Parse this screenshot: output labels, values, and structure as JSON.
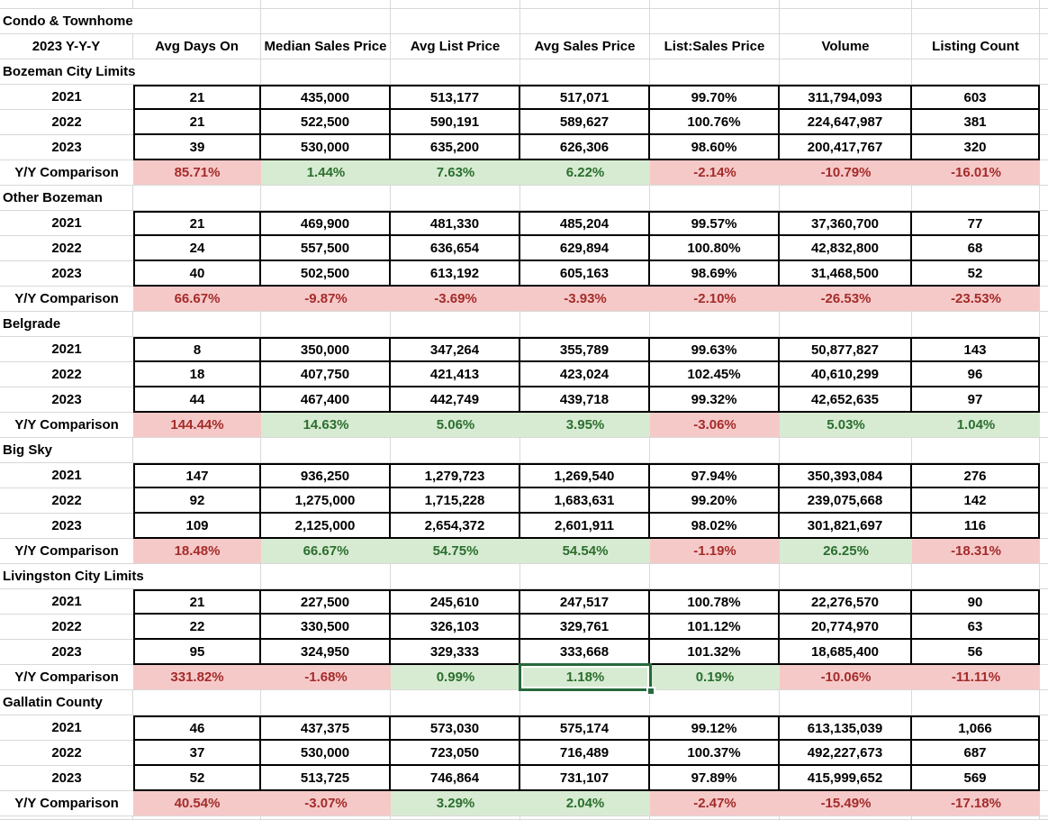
{
  "title": "Condo & Townhome",
  "columns": [
    "2023 Y-Y-Y",
    "Avg Days On",
    "Median Sales Price",
    "Avg List Price",
    "Avg Sales Price",
    "List:Sales Price",
    "Volume",
    "Listing Count"
  ],
  "yy_label": "Y/Y Comparison",
  "colors": {
    "positive_fill": "#D7EBD2",
    "positive_text": "#2B6E2F",
    "negative_fill": "#F6C9C9",
    "negative_text": "#A32C2A",
    "selection_border": "#26693C",
    "gridline": "#D8D8D8",
    "block_border": "#000000"
  },
  "selection": {
    "section_index": 4,
    "value_index": 3
  },
  "sections": [
    {
      "name": "Bozeman City Limits",
      "rows": [
        {
          "year": "2021",
          "values": [
            "21",
            "435,000",
            "513,177",
            "517,071",
            "99.70%",
            "311,794,093",
            "603"
          ]
        },
        {
          "year": "2022",
          "values": [
            "21",
            "522,500",
            "590,191",
            "589,627",
            "100.76%",
            "224,647,987",
            "381"
          ]
        },
        {
          "year": "2023",
          "values": [
            "39",
            "530,000",
            "635,200",
            "626,306",
            "98.60%",
            "200,417,767",
            "320"
          ]
        }
      ],
      "yy": [
        {
          "value": "85.71%",
          "sentiment": "negative"
        },
        {
          "value": "1.44%",
          "sentiment": "positive"
        },
        {
          "value": "7.63%",
          "sentiment": "positive"
        },
        {
          "value": "6.22%",
          "sentiment": "positive"
        },
        {
          "value": "-2.14%",
          "sentiment": "negative"
        },
        {
          "value": "-10.79%",
          "sentiment": "negative"
        },
        {
          "value": "-16.01%",
          "sentiment": "negative"
        }
      ]
    },
    {
      "name": "Other Bozeman",
      "rows": [
        {
          "year": "2021",
          "values": [
            "21",
            "469,900",
            "481,330",
            "485,204",
            "99.57%",
            "37,360,700",
            "77"
          ]
        },
        {
          "year": "2022",
          "values": [
            "24",
            "557,500",
            "636,654",
            "629,894",
            "100.80%",
            "42,832,800",
            "68"
          ]
        },
        {
          "year": "2023",
          "values": [
            "40",
            "502,500",
            "613,192",
            "605,163",
            "98.69%",
            "31,468,500",
            "52"
          ]
        }
      ],
      "yy": [
        {
          "value": "66.67%",
          "sentiment": "negative"
        },
        {
          "value": "-9.87%",
          "sentiment": "negative"
        },
        {
          "value": "-3.69%",
          "sentiment": "negative"
        },
        {
          "value": "-3.93%",
          "sentiment": "negative"
        },
        {
          "value": "-2.10%",
          "sentiment": "negative"
        },
        {
          "value": "-26.53%",
          "sentiment": "negative"
        },
        {
          "value": "-23.53%",
          "sentiment": "negative"
        }
      ]
    },
    {
      "name": "Belgrade",
      "rows": [
        {
          "year": "2021",
          "values": [
            "8",
            "350,000",
            "347,264",
            "355,789",
            "99.63%",
            "50,877,827",
            "143"
          ]
        },
        {
          "year": "2022",
          "values": [
            "18",
            "407,750",
            "421,413",
            "423,024",
            "102.45%",
            "40,610,299",
            "96"
          ]
        },
        {
          "year": "2023",
          "values": [
            "44",
            "467,400",
            "442,749",
            "439,718",
            "99.32%",
            "42,652,635",
            "97"
          ]
        }
      ],
      "yy": [
        {
          "value": "144.44%",
          "sentiment": "negative"
        },
        {
          "value": "14.63%",
          "sentiment": "positive"
        },
        {
          "value": "5.06%",
          "sentiment": "positive"
        },
        {
          "value": "3.95%",
          "sentiment": "positive"
        },
        {
          "value": "-3.06%",
          "sentiment": "negative"
        },
        {
          "value": "5.03%",
          "sentiment": "positive"
        },
        {
          "value": "1.04%",
          "sentiment": "positive"
        }
      ]
    },
    {
      "name": "Big Sky",
      "rows": [
        {
          "year": "2021",
          "values": [
            "147",
            "936,250",
            "1,279,723",
            "1,269,540",
            "97.94%",
            "350,393,084",
            "276"
          ]
        },
        {
          "year": "2022",
          "values": [
            "92",
            "1,275,000",
            "1,715,228",
            "1,683,631",
            "99.20%",
            "239,075,668",
            "142"
          ]
        },
        {
          "year": "2023",
          "values": [
            "109",
            "2,125,000",
            "2,654,372",
            "2,601,911",
            "98.02%",
            "301,821,697",
            "116"
          ]
        }
      ],
      "yy": [
        {
          "value": "18.48%",
          "sentiment": "negative"
        },
        {
          "value": "66.67%",
          "sentiment": "positive"
        },
        {
          "value": "54.75%",
          "sentiment": "positive"
        },
        {
          "value": "54.54%",
          "sentiment": "positive"
        },
        {
          "value": "-1.19%",
          "sentiment": "negative"
        },
        {
          "value": "26.25%",
          "sentiment": "positive"
        },
        {
          "value": "-18.31%",
          "sentiment": "negative"
        }
      ]
    },
    {
      "name": "Livingston City Limits",
      "rows": [
        {
          "year": "2021",
          "values": [
            "21",
            "227,500",
            "245,610",
            "247,517",
            "100.78%",
            "22,276,570",
            "90"
          ]
        },
        {
          "year": "2022",
          "values": [
            "22",
            "330,500",
            "326,103",
            "329,761",
            "101.12%",
            "20,774,970",
            "63"
          ]
        },
        {
          "year": "2023",
          "values": [
            "95",
            "324,950",
            "329,333",
            "333,668",
            "101.32%",
            "18,685,400",
            "56"
          ]
        }
      ],
      "yy": [
        {
          "value": "331.82%",
          "sentiment": "negative"
        },
        {
          "value": "-1.68%",
          "sentiment": "negative"
        },
        {
          "value": "0.99%",
          "sentiment": "positive"
        },
        {
          "value": "1.18%",
          "sentiment": "positive"
        },
        {
          "value": "0.19%",
          "sentiment": "positive"
        },
        {
          "value": "-10.06%",
          "sentiment": "negative"
        },
        {
          "value": "-11.11%",
          "sentiment": "negative"
        }
      ]
    },
    {
      "name": "Gallatin County",
      "rows": [
        {
          "year": "2021",
          "values": [
            "46",
            "437,375",
            "573,030",
            "575,174",
            "99.12%",
            "613,135,039",
            "1,066"
          ]
        },
        {
          "year": "2022",
          "values": [
            "37",
            "530,000",
            "723,050",
            "716,489",
            "100.37%",
            "492,227,673",
            "687"
          ]
        },
        {
          "year": "2023",
          "values": [
            "52",
            "513,725",
            "746,864",
            "731,107",
            "97.89%",
            "415,999,652",
            "569"
          ]
        }
      ],
      "yy": [
        {
          "value": "40.54%",
          "sentiment": "negative"
        },
        {
          "value": "-3.07%",
          "sentiment": "negative"
        },
        {
          "value": "3.29%",
          "sentiment": "positive"
        },
        {
          "value": "2.04%",
          "sentiment": "positive"
        },
        {
          "value": "-2.47%",
          "sentiment": "negative"
        },
        {
          "value": "-15.49%",
          "sentiment": "negative"
        },
        {
          "value": "-17.18%",
          "sentiment": "negative"
        }
      ]
    }
  ]
}
